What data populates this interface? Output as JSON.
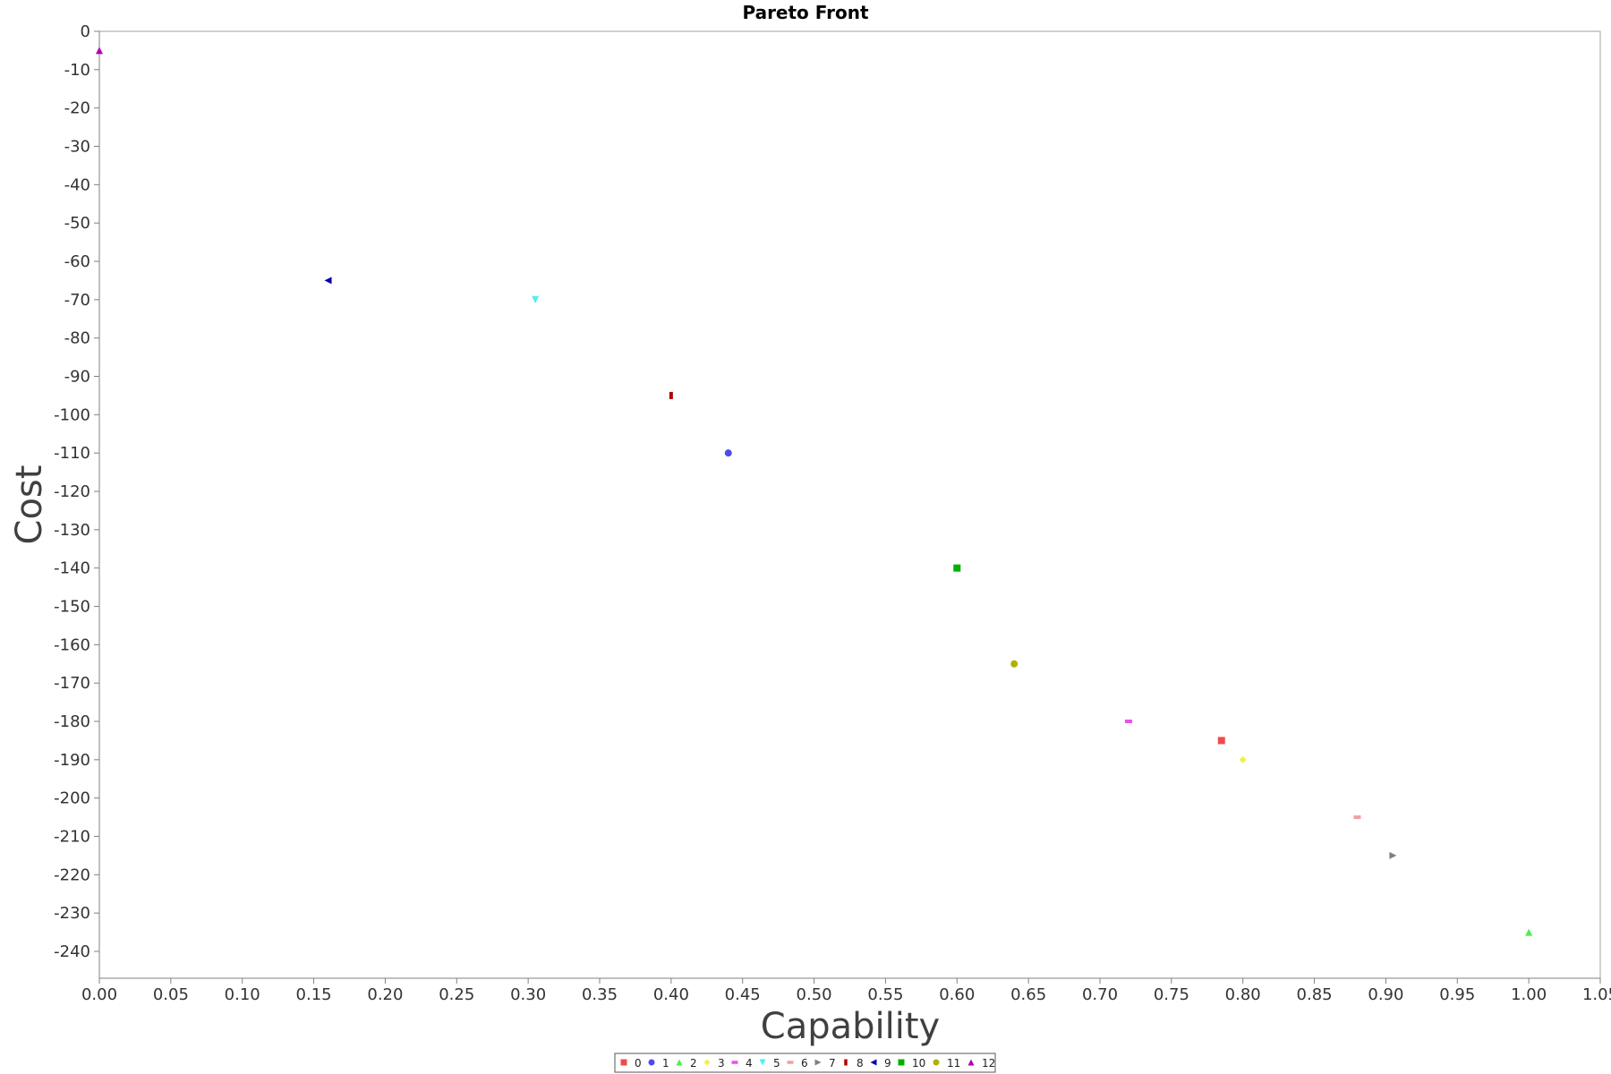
{
  "chart_data": {
    "type": "scatter",
    "title": "Pareto Front",
    "xlabel": "Capability",
    "ylabel": "Cost",
    "xlim": [
      0.0,
      1.05
    ],
    "ylim": [
      -247,
      0
    ],
    "x_ticks": [
      "0.00",
      "0.05",
      "0.10",
      "0.15",
      "0.20",
      "0.25",
      "0.30",
      "0.35",
      "0.40",
      "0.45",
      "0.50",
      "0.55",
      "0.60",
      "0.65",
      "0.70",
      "0.75",
      "0.80",
      "0.85",
      "0.90",
      "0.95",
      "1.00",
      "1.05"
    ],
    "y_ticks": [
      "0",
      "-10",
      "-20",
      "-30",
      "-40",
      "-50",
      "-60",
      "-70",
      "-80",
      "-90",
      "-100",
      "-110",
      "-120",
      "-130",
      "-140",
      "-150",
      "-160",
      "-170",
      "-180",
      "-190",
      "-200",
      "-210",
      "-220",
      "-230",
      "-240"
    ],
    "grid": false,
    "legend_position": "bottom-center",
    "series": [
      {
        "name": "0",
        "color": "#f04b4b",
        "marker": "square",
        "x": 0.785,
        "y": -185
      },
      {
        "name": "1",
        "color": "#4b4bf0",
        "marker": "circle",
        "x": 0.44,
        "y": -110
      },
      {
        "name": "2",
        "color": "#4bf04b",
        "marker": "triangle-up",
        "x": 1.0,
        "y": -235
      },
      {
        "name": "3",
        "color": "#f0f04b",
        "marker": "diamond",
        "x": 0.8,
        "y": -190
      },
      {
        "name": "4",
        "color": "#f04bf0",
        "marker": "hbar",
        "x": 0.72,
        "y": -180
      },
      {
        "name": "5",
        "color": "#4bf0f0",
        "marker": "triangle-down",
        "x": 0.305,
        "y": -70
      },
      {
        "name": "6",
        "color": "#f0a0a0",
        "marker": "hbar",
        "x": 0.88,
        "y": -205
      },
      {
        "name": "7",
        "color": "#808080",
        "marker": "triangle-right",
        "x": 0.905,
        "y": -215
      },
      {
        "name": "8",
        "color": "#b00000",
        "marker": "vbar",
        "x": 0.4,
        "y": -95
      },
      {
        "name": "9",
        "color": "#0000b0",
        "marker": "triangle-left",
        "x": 0.16,
        "y": -65
      },
      {
        "name": "10",
        "color": "#00b000",
        "marker": "square",
        "x": 0.6,
        "y": -140
      },
      {
        "name": "11",
        "color": "#b0b000",
        "marker": "circle",
        "x": 0.64,
        "y": -165
      },
      {
        "name": "12",
        "color": "#b000b0",
        "marker": "triangle-up",
        "x": 0.0,
        "y": -5
      }
    ]
  }
}
